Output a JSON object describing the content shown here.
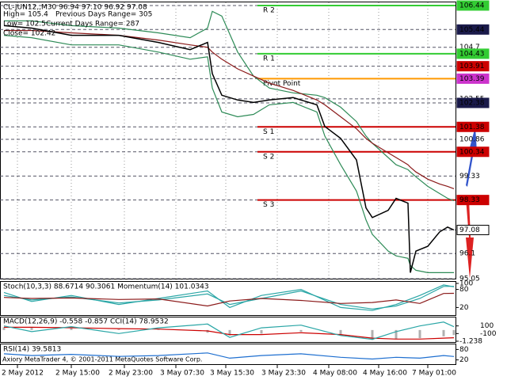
{
  "chart_data": [
    {
      "type": "line",
      "title": "CL-JUN12,,M30  96.94 97.10 96.92 97.08",
      "info_lines": [
        "High= 105.4",
        "Previous Days Range= 305",
        "Low= 102.5",
        "Current Days Range= 287",
        "Close= 102.42"
      ],
      "x": [
        5,
        40,
        90,
        150,
        200,
        240,
        262,
        268,
        280,
        300,
        320,
        340,
        370,
        400,
        410,
        430,
        450,
        462,
        470,
        490,
        500,
        515,
        518,
        525,
        540,
        555,
        565,
        573
      ],
      "xlim": [
        0,
        575
      ],
      "xticks": [
        {
          "value": 22,
          "label": "2 May 2012"
        },
        {
          "value": 90,
          "label": "2 May 15:00"
        },
        {
          "value": 157,
          "label": "2 May 23:00"
        },
        {
          "value": 222,
          "label": "3 May 07:30"
        },
        {
          "value": 285,
          "label": "3 May 15:30"
        },
        {
          "value": 350,
          "label": "3 May 23:30"
        },
        {
          "value": 415,
          "label": "4 May 08:00"
        },
        {
          "value": 478,
          "label": "4 May 16:00"
        },
        {
          "value": 540,
          "label": "7 May 01:00"
        }
      ],
      "ylim": [
        95.05,
        106.44
      ],
      "yticks": [
        106.44,
        105.44,
        104.7,
        104.43,
        103.91,
        103.39,
        102.55,
        102.38,
        101.38,
        100.86,
        100.34,
        99.33,
        98.33,
        97.08,
        96.1,
        95.05
      ],
      "ytick_boxes": [
        "#33cc33",
        "#1a1a4a",
        null,
        "#33cc33",
        "#cc0000",
        "#cc33cc",
        null,
        "#1a1a4a",
        "#cc0000",
        null,
        "#cc0000",
        null,
        "#cc0000",
        "#ffffff",
        null,
        null
      ],
      "grid": true,
      "levels": [
        {
          "name": "R 2",
          "value": 106.44,
          "color": "#33cc33"
        },
        {
          "name": "R 1",
          "value": 104.43,
          "color": "#33cc33"
        },
        {
          "name": "Pivot Point",
          "value": 103.39,
          "color": "#ff9900"
        },
        {
          "name": "S 1",
          "value": 101.38,
          "color": "#cc0000"
        },
        {
          "name": "S 2",
          "value": 100.34,
          "color": "#cc0000"
        },
        {
          "name": "S 3",
          "value": 98.33,
          "color": "#cc0000"
        }
      ],
      "series": [
        {
          "color": "#2e8b57",
          "values": [
            105.8,
            105.8,
            105.6,
            105.5,
            105.3,
            105.1,
            105.5,
            106.2,
            106.0,
            104.5,
            103.5,
            103.0,
            102.8,
            102.7,
            102.6,
            102.2,
            101.6,
            101.0,
            100.7,
            100.1,
            99.8,
            99.6,
            99.5,
            99.3,
            98.9,
            98.6,
            98.4,
            98.3
          ]
        },
        {
          "color": "#2e8b57",
          "values": [
            105.2,
            105.1,
            104.8,
            104.8,
            104.5,
            104.2,
            104.3,
            103.0,
            102.0,
            101.8,
            101.9,
            102.3,
            102.4,
            102.0,
            101.0,
            99.8,
            98.7,
            97.5,
            96.9,
            96.2,
            96.0,
            95.9,
            95.6,
            95.4,
            95.3,
            95.3,
            95.3,
            95.3
          ]
        },
        {
          "color": "#8b1a1a",
          "values": [
            105.4,
            105.4,
            105.3,
            105.2,
            105.0,
            104.8,
            104.7,
            104.5,
            104.2,
            103.8,
            103.5,
            103.2,
            102.9,
            102.5,
            102.3,
            101.8,
            101.3,
            100.9,
            100.7,
            100.3,
            100.1,
            99.8,
            99.7,
            99.5,
            99.2,
            99.0,
            98.9,
            98.8
          ]
        },
        {
          "color": "#000000",
          "values": [
            105.6,
            105.5,
            105.2,
            105.2,
            104.9,
            104.6,
            104.9,
            103.6,
            102.7,
            102.5,
            102.4,
            102.5,
            102.6,
            102.3,
            101.4,
            100.9,
            100.0,
            98.0,
            97.6,
            97.9,
            98.4,
            98.2,
            95.3,
            96.2,
            96.4,
            97.0,
            97.2,
            97.08
          ]
        }
      ]
    },
    {
      "type": "line",
      "title": "Stoch(10,3,3) 88.6714 90.3061  Momentum(14) 101.0343",
      "x": [
        5,
        40,
        90,
        150,
        200,
        262,
        290,
        330,
        380,
        430,
        470,
        500,
        530,
        560,
        573
      ],
      "ylim": [
        0,
        100
      ],
      "yticks": [
        100,
        80,
        20
      ],
      "y2lim": [
        97,
        103
      ],
      "series": [
        {
          "color": "#2aa6a6",
          "values": [
            70,
            40,
            60,
            30,
            50,
            75,
            20,
            60,
            80,
            20,
            10,
            30,
            60,
            95,
            88.67
          ]
        },
        {
          "color": "#2aa6a6",
          "values": [
            60,
            45,
            55,
            35,
            45,
            65,
            30,
            50,
            75,
            30,
            15,
            25,
            50,
            90,
            90.31
          ]
        },
        {
          "color": "#8b1a1a",
          "axis": "y2",
          "values": [
            100.2,
            100.0,
            100.1,
            99.8,
            99.9,
            98.5,
            99.5,
            100.0,
            99.6,
            99.0,
            99.2,
            99.7,
            99.0,
            101.0,
            101.03
          ]
        }
      ]
    },
    {
      "type": "line",
      "title": "MACD(12,26,9) -0.558 -0.857  CCI(14) 78.9532",
      "x": [
        5,
        40,
        90,
        150,
        200,
        262,
        290,
        330,
        380,
        430,
        470,
        500,
        530,
        560,
        573
      ],
      "ylim": [
        -1.238,
        1.3
      ],
      "yticks": [
        -1.238
      ],
      "y2lim": [
        -300,
        300
      ],
      "y2ticks": [
        100,
        -100
      ],
      "series": [
        {
          "color": "#b0b0b0",
          "style": "histogram",
          "values": [
            0.3,
            0.25,
            0.2,
            0.1,
            0.05,
            -0.3,
            -0.6,
            -0.4,
            -0.2,
            -0.6,
            -1.1,
            -1.0,
            -0.9,
            -0.7,
            -0.558
          ]
        },
        {
          "color": "#cc0000",
          "values": [
            0.3,
            0.3,
            0.25,
            0.15,
            0.1,
            -0.1,
            -0.5,
            -0.5,
            -0.3,
            -0.5,
            -0.9,
            -1.0,
            -1.0,
            -0.9,
            -0.857
          ]
        },
        {
          "color": "#2aa6a6",
          "axis": "y2",
          "values": [
            100,
            -50,
            80,
            -100,
            50,
            150,
            -200,
            50,
            120,
            -150,
            -250,
            -50,
            100,
            200,
            78.95
          ]
        }
      ]
    },
    {
      "type": "line",
      "title": "RSI(14) 39.5813",
      "x": [
        5,
        40,
        90,
        150,
        200,
        262,
        290,
        330,
        380,
        430,
        470,
        500,
        530,
        560,
        573
      ],
      "ylim": [
        0,
        100
      ],
      "yticks": [
        80,
        20
      ],
      "series": [
        {
          "color": "#1e6fd0",
          "values": [
            55,
            45,
            52,
            40,
            45,
            60,
            30,
            45,
            55,
            35,
            25,
            35,
            30,
            45,
            39.58
          ]
        }
      ]
    }
  ],
  "footer": "Axiory MetaTrader 4, © 2001-2011 MetaQuotes Software Corp."
}
